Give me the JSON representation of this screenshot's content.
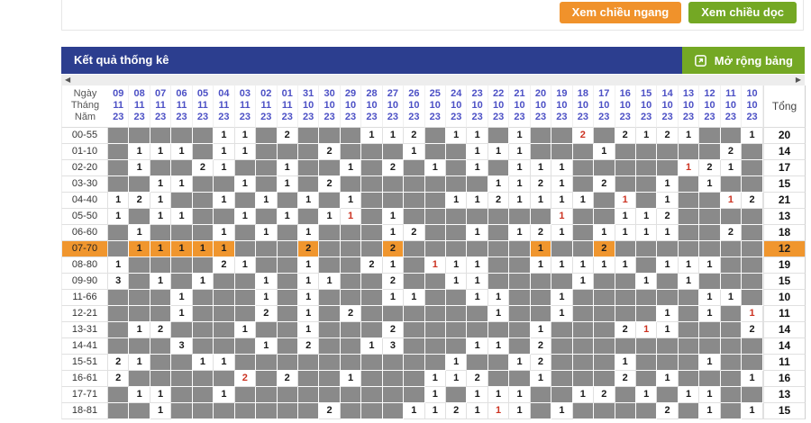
{
  "toolbar": {
    "horizontal_button": "Xem chiều ngang",
    "vertical_button": "Xem chiều dọc"
  },
  "panel": {
    "title": "Kết quả thống kê",
    "expand_button": "Mở rộng bảng"
  },
  "colors": {
    "navy_header": "#2c3e8f",
    "green_button": "#74a824",
    "orange_button": "#f0922b",
    "highlight_orange": "#f0962e",
    "empty_cell_gray": "#8a8a8a",
    "red_number": "#cc3322",
    "date_text_blue": "#4c50c5"
  },
  "table": {
    "corner_labels": [
      "Ngày",
      "Tháng",
      "Năm"
    ],
    "total_label": "Tổng",
    "columns": [
      {
        "day": "09",
        "month": "11",
        "year": "23"
      },
      {
        "day": "08",
        "month": "11",
        "year": "23"
      },
      {
        "day": "07",
        "month": "11",
        "year": "23"
      },
      {
        "day": "06",
        "month": "11",
        "year": "23"
      },
      {
        "day": "05",
        "month": "11",
        "year": "23"
      },
      {
        "day": "04",
        "month": "11",
        "year": "23"
      },
      {
        "day": "03",
        "month": "11",
        "year": "23"
      },
      {
        "day": "02",
        "month": "11",
        "year": "23"
      },
      {
        "day": "01",
        "month": "11",
        "year": "23"
      },
      {
        "day": "31",
        "month": "10",
        "year": "23"
      },
      {
        "day": "30",
        "month": "10",
        "year": "23"
      },
      {
        "day": "29",
        "month": "10",
        "year": "23"
      },
      {
        "day": "28",
        "month": "10",
        "year": "23"
      },
      {
        "day": "27",
        "month": "10",
        "year": "23"
      },
      {
        "day": "26",
        "month": "10",
        "year": "23"
      },
      {
        "day": "25",
        "month": "10",
        "year": "23"
      },
      {
        "day": "24",
        "month": "10",
        "year": "23"
      },
      {
        "day": "23",
        "month": "10",
        "year": "23"
      },
      {
        "day": "22",
        "month": "10",
        "year": "23"
      },
      {
        "day": "21",
        "month": "10",
        "year": "23"
      },
      {
        "day": "20",
        "month": "10",
        "year": "23"
      },
      {
        "day": "19",
        "month": "10",
        "year": "23"
      },
      {
        "day": "18",
        "month": "10",
        "year": "23"
      },
      {
        "day": "17",
        "month": "10",
        "year": "23"
      },
      {
        "day": "16",
        "month": "10",
        "year": "23"
      },
      {
        "day": "15",
        "month": "10",
        "year": "23"
      },
      {
        "day": "14",
        "month": "10",
        "year": "23"
      },
      {
        "day": "13",
        "month": "10",
        "year": "23"
      },
      {
        "day": "12",
        "month": "10",
        "year": "23"
      },
      {
        "day": "11",
        "month": "10",
        "year": "23"
      },
      {
        "day": "10",
        "month": "10",
        "year": "23"
      }
    ],
    "rows": [
      {
        "label": "00-55",
        "total": "20",
        "highlight": false,
        "cells": [
          "",
          "",
          "",
          "",
          "",
          "1",
          "1",
          "",
          "2",
          "",
          "",
          "",
          "1",
          "1",
          "2",
          "",
          "1",
          "1",
          "",
          "1",
          "",
          "",
          "2r",
          "",
          "2",
          "1",
          "2",
          "1",
          "",
          "",
          "1"
        ]
      },
      {
        "label": "01-10",
        "total": "14",
        "highlight": false,
        "cells": [
          "",
          "1",
          "1",
          "1",
          "",
          "1",
          "1",
          "",
          "",
          "",
          "2",
          "",
          "",
          "",
          "1",
          "",
          "",
          "1",
          "1",
          "1",
          "",
          "",
          "",
          "1",
          "",
          "",
          "",
          "",
          "",
          "2",
          ""
        ]
      },
      {
        "label": "02-20",
        "total": "17",
        "highlight": false,
        "cells": [
          "",
          "1",
          "",
          "",
          "2",
          "1",
          "",
          "",
          "1",
          "",
          "",
          "1",
          "",
          "2",
          "",
          "1",
          "",
          "1",
          "",
          "1",
          "1",
          "1",
          "",
          "",
          "",
          "",
          "",
          "1r",
          "2",
          "1",
          ""
        ]
      },
      {
        "label": "03-30",
        "total": "15",
        "highlight": false,
        "cells": [
          "",
          "",
          "1",
          "1",
          "",
          "",
          "1",
          "",
          "1",
          "",
          "2",
          "",
          "",
          "",
          "",
          "",
          "",
          "",
          "1",
          "1",
          "2",
          "1",
          "",
          "2",
          "",
          "",
          "1",
          "",
          "1",
          "",
          ""
        ]
      },
      {
        "label": "04-40",
        "total": "21",
        "highlight": false,
        "cells": [
          "1",
          "2",
          "1",
          "",
          "",
          "1",
          "",
          "1",
          "",
          "1",
          "",
          "1",
          "",
          "",
          "",
          "",
          "1",
          "1",
          "2",
          "1",
          "1",
          "1",
          "1",
          "",
          "1r",
          "",
          "1",
          "",
          "",
          "1r",
          "2"
        ]
      },
      {
        "label": "05-50",
        "total": "13",
        "highlight": false,
        "cells": [
          "1",
          "",
          "1",
          "1",
          "",
          "",
          "1",
          "",
          "1",
          "",
          "1",
          "1r",
          "",
          "1",
          "",
          "",
          "",
          "",
          "",
          "",
          "",
          "1r",
          "",
          "",
          "1",
          "1",
          "2",
          "",
          "",
          "",
          ""
        ]
      },
      {
        "label": "06-60",
        "total": "18",
        "highlight": false,
        "cells": [
          "",
          "1",
          "",
          "",
          "",
          "1",
          "",
          "1",
          "",
          "1",
          "",
          "",
          "",
          "1",
          "2",
          "",
          "",
          "1",
          "",
          "1",
          "2",
          "1",
          "",
          "1",
          "1",
          "1",
          "1",
          "",
          "",
          "2",
          ""
        ]
      },
      {
        "label": "07-70",
        "total": "12",
        "highlight": true,
        "cells": [
          "",
          "1",
          "1",
          "1",
          "1",
          "1",
          "",
          "",
          "",
          "2",
          "",
          "",
          "",
          "2",
          "",
          "",
          "",
          "",
          "",
          "",
          "1",
          "",
          "",
          "2",
          "",
          "",
          "",
          "",
          "",
          "",
          ""
        ]
      },
      {
        "label": "08-80",
        "total": "19",
        "highlight": false,
        "cells": [
          "1",
          "",
          "",
          "",
          "",
          "2",
          "1",
          "",
          "",
          "1",
          "",
          "",
          "2",
          "1",
          "",
          "1r",
          "1",
          "1",
          "",
          "",
          "1",
          "1",
          "1",
          "1",
          "1",
          "",
          "1",
          "1",
          "1",
          "",
          ""
        ]
      },
      {
        "label": "09-90",
        "total": "15",
        "highlight": false,
        "cells": [
          "3",
          "",
          "1",
          "",
          "1",
          "",
          "",
          "1",
          "",
          "1",
          "1",
          "",
          "",
          "2",
          "",
          "",
          "1",
          "1",
          "",
          "",
          "",
          "",
          "1",
          "",
          "",
          "1",
          "",
          "1",
          "",
          "",
          ""
        ]
      },
      {
        "label": "11-66",
        "total": "10",
        "highlight": false,
        "cells": [
          "",
          "",
          "",
          "1",
          "",
          "",
          "",
          "1",
          "",
          "1",
          "",
          "",
          "",
          "1",
          "1",
          "",
          "",
          "1",
          "1",
          "",
          "",
          "1",
          "",
          "",
          "",
          "",
          "",
          "",
          "1",
          "1",
          ""
        ]
      },
      {
        "label": "12-21",
        "total": "11",
        "highlight": false,
        "cells": [
          "",
          "",
          "",
          "1",
          "",
          "",
          "",
          "2",
          "",
          "1",
          "",
          "2",
          "",
          "",
          "",
          "",
          "",
          "",
          "1",
          "",
          "",
          "1",
          "",
          "",
          "",
          "",
          "1",
          "",
          "1",
          "",
          "1r"
        ]
      },
      {
        "label": "13-31",
        "total": "14",
        "highlight": false,
        "cells": [
          "",
          "1",
          "2",
          "",
          "",
          "",
          "1",
          "",
          "",
          "1",
          "",
          "",
          "",
          "2",
          "",
          "",
          "",
          "",
          "",
          "",
          "1",
          "",
          "",
          "",
          "2",
          "1r",
          "1",
          "",
          "",
          "",
          "2"
        ]
      },
      {
        "label": "14-41",
        "total": "14",
        "highlight": false,
        "cells": [
          "",
          "",
          "",
          "3",
          "",
          "",
          "",
          "1",
          "",
          "2",
          "",
          "",
          "1",
          "3",
          "",
          "",
          "",
          "1",
          "1",
          "",
          "2",
          "",
          "",
          "",
          "",
          "",
          "",
          "",
          "",
          "",
          ""
        ]
      },
      {
        "label": "15-51",
        "total": "11",
        "highlight": false,
        "cells": [
          "2",
          "1",
          "",
          "",
          "1",
          "1",
          "",
          "",
          "",
          "",
          "",
          "",
          "",
          "",
          "",
          "",
          "1",
          "",
          "",
          "1",
          "2",
          "",
          "",
          "",
          "1",
          "",
          "",
          "",
          "1",
          "",
          ""
        ]
      },
      {
        "label": "16-61",
        "total": "16",
        "highlight": false,
        "cells": [
          "2",
          "",
          "",
          "",
          "",
          "",
          "2r",
          "",
          "2",
          "",
          "",
          "1",
          "",
          "",
          "",
          "1",
          "1",
          "2",
          "",
          "",
          "1",
          "",
          "",
          "",
          "2",
          "",
          "1",
          "",
          "",
          "",
          "1"
        ]
      },
      {
        "label": "17-71",
        "total": "13",
        "highlight": false,
        "cells": [
          "",
          "1",
          "1",
          "",
          "",
          "1",
          "",
          "",
          "",
          "",
          "",
          "",
          "",
          "",
          "",
          "1",
          "",
          "1",
          "1",
          "1",
          "",
          "",
          "1",
          "2",
          "",
          "1",
          "",
          "1",
          "1",
          "",
          ""
        ]
      },
      {
        "label": "18-81",
        "total": "15",
        "highlight": false,
        "cells": [
          "",
          "",
          "1",
          "",
          "",
          "",
          "",
          "",
          "",
          "",
          "2",
          "",
          "",
          "",
          "1",
          "1",
          "2",
          "1",
          "1r",
          "1",
          "",
          "1",
          "",
          "",
          "",
          "",
          "2",
          "",
          "1",
          "",
          "1"
        ]
      }
    ]
  }
}
